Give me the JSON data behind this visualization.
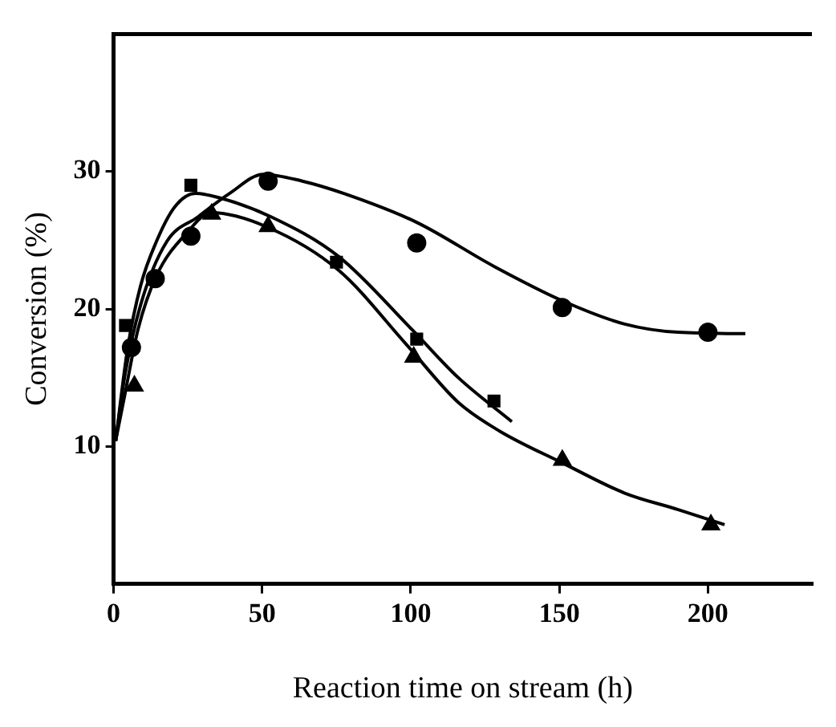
{
  "chart_data": {
    "type": "scatter",
    "xlabel": "Reaction time on stream (h)",
    "ylabel": "Conversion (%)",
    "xlim": [
      0,
      235
    ],
    "ylim": [
      0,
      40
    ],
    "xticks": [
      0,
      50,
      100,
      150,
      200
    ],
    "yticks": [
      10,
      20,
      30
    ],
    "grid": false,
    "legend": false,
    "series": [
      {
        "type": "scatter",
        "marker": "circle",
        "color": "#000000",
        "x": [
          6,
          14,
          26,
          52,
          102,
          151,
          200
        ],
        "values": [
          17.2,
          22.2,
          25.3,
          29.3,
          24.8,
          20.1,
          18.3
        ]
      },
      {
        "type": "scatter",
        "marker": "square",
        "color": "#000000",
        "x": [
          4,
          26,
          75,
          102,
          128
        ],
        "values": [
          18.8,
          29.0,
          23.4,
          17.8,
          13.3
        ]
      },
      {
        "type": "scatter",
        "marker": "triangle",
        "color": "#000000",
        "x": [
          7,
          33,
          52,
          101,
          151,
          201
        ],
        "values": [
          14.4,
          26.9,
          26.0,
          16.5,
          9.0,
          4.3
        ]
      },
      {
        "type": "line",
        "marker": "none",
        "line_style": "solid",
        "color": "#000000",
        "x": [
          0.7,
          3.9,
          9.1,
          17.9,
          28.4,
          39,
          50.4,
          63.5,
          77.5,
          102,
          128,
          151,
          172,
          190,
          212.6
        ],
        "values": [
          10.4,
          15.3,
          20.3,
          24.9,
          26.7,
          28.4,
          29.8,
          29.3,
          28.4,
          26.3,
          23.1,
          20.6,
          18.9,
          18.3,
          18.2
        ]
      },
      {
        "type": "line",
        "marker": "none",
        "line_style": "solid",
        "color": "#000000",
        "x": [
          0.7,
          4.7,
          9.1,
          14.4,
          20.5,
          27.5,
          35.4,
          53,
          75.8,
          100.4,
          116,
          134
        ],
        "values": [
          10.4,
          17.1,
          21.7,
          24.9,
          27.4,
          28.4,
          28.1,
          26.7,
          23.8,
          18.5,
          15.0,
          11.8
        ]
      },
      {
        "type": "line",
        "marker": "none",
        "line_style": "solid",
        "color": "#000000",
        "x": [
          0.7,
          3.9,
          8.2,
          14.4,
          24.9,
          32.8,
          51.2,
          75.8,
          98.6,
          116,
          130,
          151,
          172,
          190,
          205.6
        ],
        "values": [
          10.4,
          13.9,
          18.5,
          22.4,
          25.6,
          27.0,
          26.0,
          22.8,
          17.4,
          13.2,
          11.1,
          8.8,
          6.6,
          5.4,
          4.3
        ]
      }
    ]
  }
}
